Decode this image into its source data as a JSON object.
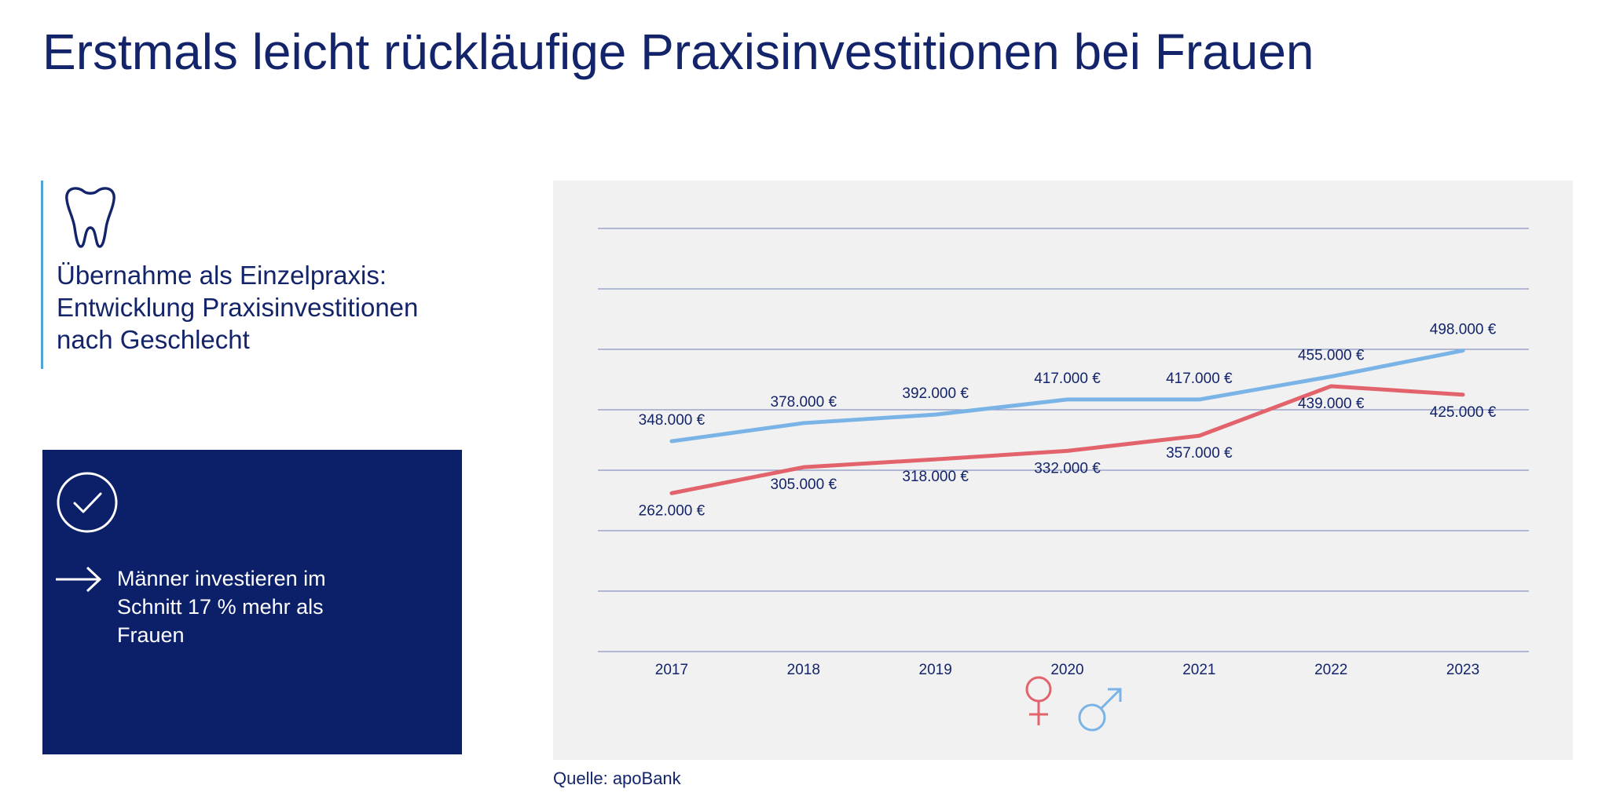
{
  "page": {
    "title": "Erstmals leicht rückläufige Praxisinvestitionen bei Frauen",
    "subtitle_lines": [
      "Übernahme als Einzelpraxis:",
      "Entwicklung Praxisinvestitionen",
      "nach Geschlecht"
    ],
    "info_lines": [
      "Männer investieren im",
      "Schnitt 17 % mehr als",
      "Frauen"
    ],
    "source": "Quelle: apoBank",
    "icons": {
      "subtitle": "tooth-icon",
      "info_check": "checkmark-circle-icon",
      "info_arrow": "arrow-right-icon",
      "legend_female": "female-symbol-icon",
      "legend_male": "male-symbol-icon"
    }
  },
  "colors": {
    "title": "#13246b",
    "accent_bar": "#4fa3d6",
    "info_box": "#0c2069",
    "panel": "#f1f1f1",
    "grid": "#8a96c4",
    "female": "#e2636b",
    "male": "#7ab4e6"
  },
  "chart_data": {
    "type": "line",
    "categories": [
      "2017",
      "2018",
      "2019",
      "2020",
      "2021",
      "2022",
      "2023"
    ],
    "ylim": [
      0,
      700000
    ],
    "grid": true,
    "legend": "bottom-center",
    "series": [
      {
        "key": "male",
        "legend_icon": "male-symbol-icon",
        "color": "#7ab4e6",
        "values": [
          348000,
          378000,
          392000,
          417000,
          417000,
          455000,
          498000
        ],
        "labels": [
          "348.000 €",
          "378.000 €",
          "392.000 €",
          "417.000 €",
          "417.000 €",
          "455.000 €",
          "498.000 €"
        ],
        "label_position": "above"
      },
      {
        "key": "female",
        "legend_icon": "female-symbol-icon",
        "color": "#e2636b",
        "values": [
          262000,
          305000,
          318000,
          332000,
          357000,
          439000,
          425000
        ],
        "labels": [
          "262.000 €",
          "305.000 €",
          "318.000 €",
          "332.000 €",
          "357.000 €",
          "439.000 €",
          "425.000 €"
        ],
        "label_position": "below"
      }
    ]
  }
}
